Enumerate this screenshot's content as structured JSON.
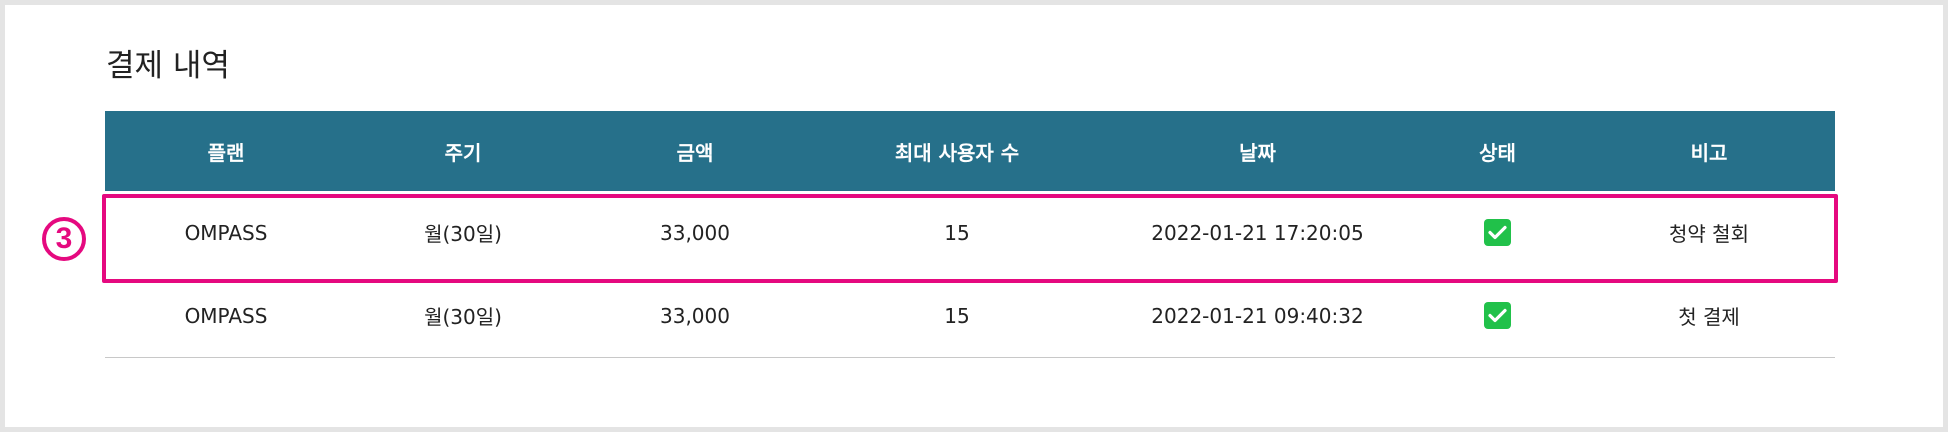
{
  "section": {
    "title": "결제 내역"
  },
  "table": {
    "headers": [
      "플랜",
      "주기",
      "금액",
      "최대 사용자 수",
      "날짜",
      "상태",
      "비고"
    ],
    "rows": [
      {
        "plan": "OMPASS",
        "cycle": "월(30일)",
        "amount": "33,000",
        "max_users": "15",
        "date": "2022-01-21 17:20:05",
        "status": "checked",
        "note": "청약 철회"
      },
      {
        "plan": "OMPASS",
        "cycle": "월(30일)",
        "amount": "33,000",
        "max_users": "15",
        "date": "2022-01-21 09:40:32",
        "status": "checked",
        "note": "첫 결제"
      }
    ]
  },
  "annotation": {
    "step_number": "3",
    "highlight_color": "#e5097f"
  },
  "colors": {
    "header_bg": "#26708a",
    "check_green": "#21c14a"
  }
}
